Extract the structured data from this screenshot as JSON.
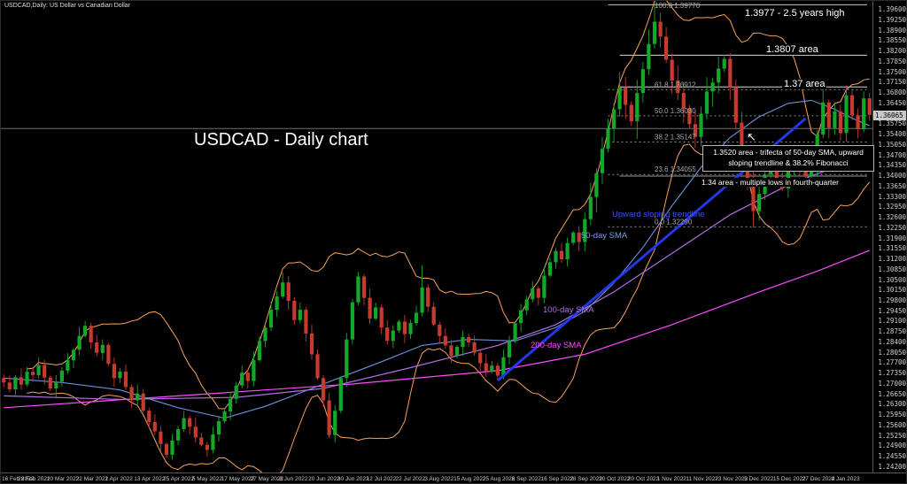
{
  "meta": {
    "app": "trading chart window"
  },
  "colors": {
    "background": "#000000",
    "bull": "#13a829",
    "bear": "#c63a30",
    "bollinger": "#f8a25a",
    "sma50": "#6f8fd8",
    "sma100": "#b06fe0",
    "sma200": "#ff4cff",
    "trendline": "#2438e8",
    "level_line": "#d9d9d9",
    "fib_line": "#8f8f8f",
    "axis_text": "#cfcfcf"
  },
  "annotations": {
    "big_title": "USDCAD - Daily chart",
    "high_label": "1.3977 - 2.5 years high",
    "area_3807": "1.3807 area",
    "area_137": "1.37 area",
    "trifecta": "1.3520 area - trifecta of 50-day SMA, upward sloping trendline & 38.2% Fibonacci",
    "area_134": "1.34 area - multiple lows in fourth-quarter",
    "sma50_label": "50-day SMA",
    "trendline_label": "Upward sloping trendline",
    "sma100_label": "100-day SMA",
    "sma200_label": "200-day SMA",
    "arrow_icon": "↖"
  },
  "chart_data": {
    "type": "candlestick",
    "title": "USDCAD - Daily chart",
    "symbol": "USDCAD,Daily: US Dollar vs Canadian Dollar",
    "ylim": [
      1.2405,
      1.399
    ],
    "y_tick_start": 1.242,
    "y_tick_step": 0.0035,
    "y_decimals": 5,
    "current_price": "1.36065",
    "grid": false,
    "legend_position": "none",
    "date_labels": [
      "16 Feb 2022",
      "28 Feb 2022",
      "10 Mar 2022",
      "22 Mar 2022",
      "1 Apr 2022",
      "13 Apr 2022",
      "25 Apr 2022",
      "5 May 2022",
      "17 May 2022",
      "27 May 2022",
      "8 Jun 2022",
      "20 Jun 2022",
      "30 Jun 2022",
      "12 Jul 2022",
      "22 Jul 2022",
      "3 Aug 2022",
      "15 Aug 2022",
      "25 Aug 2022",
      "6 Sep 2022",
      "16 Sep 2022",
      "28 Sep 2022",
      "10 Oct 2022",
      "20 Oct 2022",
      "1 Nov 2022",
      "11 Nov 2022",
      "23 Nov 2022",
      "5 Dec 2022",
      "15 Dec 2022",
      "27 Dec 2022",
      "4 Jan 2023"
    ],
    "ohlc": [
      [
        1.272,
        1.2732,
        1.2689,
        1.2705
      ],
      [
        1.2705,
        1.2729,
        1.2672,
        1.2682
      ],
      [
        1.2682,
        1.2731,
        1.2656,
        1.2723
      ],
      [
        1.2723,
        1.2753,
        1.268,
        1.2698
      ],
      [
        1.2698,
        1.2757,
        1.2692,
        1.2741
      ],
      [
        1.2741,
        1.2751,
        1.2708,
        1.273
      ],
      [
        1.273,
        1.279,
        1.2718,
        1.2764
      ],
      [
        1.2764,
        1.2782,
        1.2698,
        1.2722
      ],
      [
        1.2722,
        1.2728,
        1.2677,
        1.2685
      ],
      [
        1.2685,
        1.273,
        1.2655,
        1.2708
      ],
      [
        1.2708,
        1.2757,
        1.2692,
        1.2745
      ],
      [
        1.2745,
        1.2804,
        1.2735,
        1.278
      ],
      [
        1.278,
        1.2823,
        1.2754,
        1.2815
      ],
      [
        1.2815,
        1.2892,
        1.2797,
        1.2862
      ],
      [
        1.2862,
        1.2912,
        1.2856,
        1.2896
      ],
      [
        1.2896,
        1.2906,
        1.2818,
        1.284
      ],
      [
        1.284,
        1.2866,
        1.2793,
        1.2805
      ],
      [
        1.2805,
        1.285,
        1.2781,
        1.2832
      ],
      [
        1.2832,
        1.2838,
        1.276,
        1.2768
      ],
      [
        1.2768,
        1.279,
        1.269,
        1.272
      ],
      [
        1.272,
        1.2754,
        1.2704,
        1.2742
      ],
      [
        1.2742,
        1.2766,
        1.268,
        1.269
      ],
      [
        1.269,
        1.2698,
        1.2619,
        1.2645
      ],
      [
        1.2645,
        1.2698,
        1.2627,
        1.2668
      ],
      [
        1.2668,
        1.2684,
        1.2604,
        1.261
      ],
      [
        1.261,
        1.262,
        1.255,
        1.2572
      ],
      [
        1.2572,
        1.2598,
        1.2528,
        1.254
      ],
      [
        1.254,
        1.2558,
        1.2474,
        1.2498
      ],
      [
        1.2498,
        1.2504,
        1.245,
        1.2462
      ],
      [
        1.2462,
        1.2532,
        1.2445,
        1.251
      ],
      [
        1.251,
        1.256,
        1.2494,
        1.2548
      ],
      [
        1.2548,
        1.2609,
        1.2538,
        1.2585
      ],
      [
        1.2585,
        1.2593,
        1.253,
        1.2556
      ],
      [
        1.2556,
        1.2586,
        1.2502,
        1.252
      ],
      [
        1.252,
        1.2536,
        1.2489,
        1.2495
      ],
      [
        1.2495,
        1.2505,
        1.2456,
        1.2478
      ],
      [
        1.2478,
        1.2556,
        1.2466,
        1.253
      ],
      [
        1.253,
        1.2593,
        1.2506,
        1.2575
      ],
      [
        1.2575,
        1.2614,
        1.2567,
        1.2608
      ],
      [
        1.2608,
        1.2672,
        1.2578,
        1.265
      ],
      [
        1.265,
        1.2707,
        1.2634,
        1.2695
      ],
      [
        1.2695,
        1.2762,
        1.2685,
        1.2738
      ],
      [
        1.2738,
        1.2746,
        1.2684,
        1.271
      ],
      [
        1.271,
        1.281,
        1.2692,
        1.278
      ],
      [
        1.278,
        1.2861,
        1.2774,
        1.2845
      ],
      [
        1.2845,
        1.29,
        1.2823,
        1.289
      ],
      [
        1.289,
        1.2976,
        1.2878,
        1.295
      ],
      [
        1.295,
        1.3013,
        1.2926,
        1.2995
      ],
      [
        1.2995,
        1.3076,
        1.2987,
        1.3042
      ],
      [
        1.3042,
        1.3064,
        1.295,
        1.298
      ],
      [
        1.298,
        1.2992,
        1.2899,
        1.2915
      ],
      [
        1.2915,
        1.2974,
        1.2905,
        1.295
      ],
      [
        1.295,
        1.2958,
        1.2844,
        1.287
      ],
      [
        1.287,
        1.29,
        1.2782,
        1.28
      ],
      [
        1.28,
        1.2816,
        1.2714,
        1.272
      ],
      [
        1.272,
        1.273,
        1.2623,
        1.2645
      ],
      [
        1.2645,
        1.2671,
        1.2518,
        1.2528
      ],
      [
        1.2528,
        1.2628,
        1.2504,
        1.261
      ],
      [
        1.261,
        1.2726,
        1.2602,
        1.272
      ],
      [
        1.272,
        1.2872,
        1.269,
        1.285
      ],
      [
        1.285,
        1.2987,
        1.2834,
        1.2975
      ],
      [
        1.2975,
        1.3078,
        1.2965,
        1.3062
      ],
      [
        1.3062,
        1.307,
        1.2964,
        1.299
      ],
      [
        1.299,
        1.302,
        1.2902,
        1.292
      ],
      [
        1.292,
        1.2974,
        1.2914,
        1.2958
      ],
      [
        1.2958,
        1.2968,
        1.2868,
        1.289
      ],
      [
        1.289,
        1.2916,
        1.2833,
        1.2845
      ],
      [
        1.2845,
        1.2898,
        1.2821,
        1.288
      ],
      [
        1.288,
        1.2916,
        1.2872,
        1.291
      ],
      [
        1.291,
        1.2932,
        1.2838,
        1.2868
      ],
      [
        1.2868,
        1.2917,
        1.2852,
        1.2905
      ],
      [
        1.2905,
        1.2964,
        1.2895,
        1.294
      ],
      [
        1.294,
        1.31,
        1.2928,
        1.3025
      ],
      [
        1.3025,
        1.3035,
        1.2942,
        1.296
      ],
      [
        1.296,
        1.2976,
        1.2894,
        1.29
      ],
      [
        1.29,
        1.291,
        1.284,
        1.2862
      ],
      [
        1.2862,
        1.2888,
        1.2818,
        1.283
      ],
      [
        1.283,
        1.2848,
        1.2771,
        1.2795
      ],
      [
        1.2795,
        1.2831,
        1.2787,
        1.2825
      ],
      [
        1.2825,
        1.288,
        1.2795,
        1.2858
      ],
      [
        1.2858,
        1.287,
        1.2824,
        1.284
      ],
      [
        1.284,
        1.2864,
        1.2795,
        1.2805
      ],
      [
        1.2805,
        1.2813,
        1.2744,
        1.277
      ],
      [
        1.277,
        1.28,
        1.2724,
        1.2742
      ],
      [
        1.2742,
        1.2778,
        1.2736,
        1.2762
      ],
      [
        1.2762,
        1.2772,
        1.2712,
        1.2728
      ],
      [
        1.2728,
        1.2816,
        1.2716,
        1.279
      ],
      [
        1.279,
        1.2863,
        1.2766,
        1.2845
      ],
      [
        1.2845,
        1.2911,
        1.2837,
        1.2905
      ],
      [
        1.2905,
        1.297,
        1.2875,
        1.2948
      ],
      [
        1.2948,
        1.2997,
        1.2932,
        1.2985
      ],
      [
        1.2985,
        1.3046,
        1.2975,
        1.3022
      ],
      [
        1.3022,
        1.303,
        1.2964,
        1.299
      ],
      [
        1.299,
        1.3095,
        1.2972,
        1.3065
      ],
      [
        1.3065,
        1.3126,
        1.3059,
        1.311
      ],
      [
        1.311,
        1.3158,
        1.3088,
        1.3148
      ],
      [
        1.3148,
        1.3174,
        1.3108,
        1.312
      ],
      [
        1.312,
        1.3193,
        1.3096,
        1.3175
      ],
      [
        1.3175,
        1.3216,
        1.3167,
        1.321
      ],
      [
        1.321,
        1.3232,
        1.3148,
        1.3178
      ],
      [
        1.3178,
        1.3279,
        1.3146,
        1.3255
      ],
      [
        1.3255,
        1.3378,
        1.3235,
        1.333
      ],
      [
        1.333,
        1.3426,
        1.3278,
        1.341
      ],
      [
        1.341,
        1.3532,
        1.3374,
        1.3492
      ],
      [
        1.3492,
        1.3592,
        1.348,
        1.356
      ],
      [
        1.356,
        1.3645,
        1.3516,
        1.3625
      ],
      [
        1.3625,
        1.375,
        1.3601,
        1.3698
      ],
      [
        1.3698,
        1.3734,
        1.3592,
        1.364
      ],
      [
        1.364,
        1.3652,
        1.3569,
        1.3585
      ],
      [
        1.3585,
        1.3724,
        1.3525,
        1.368
      ],
      [
        1.368,
        1.3784,
        1.3648,
        1.376
      ],
      [
        1.376,
        1.3893,
        1.374,
        1.3845
      ],
      [
        1.3845,
        1.3977,
        1.3829,
        1.392
      ],
      [
        1.392,
        1.395,
        1.3834,
        1.387
      ],
      [
        1.387,
        1.3902,
        1.378,
        1.3792
      ],
      [
        1.3792,
        1.3812,
        1.3678,
        1.3722
      ],
      [
        1.3722,
        1.3774,
        1.3656,
        1.368
      ],
      [
        1.368,
        1.3716,
        1.358,
        1.3628
      ],
      [
        1.3628,
        1.364,
        1.3559,
        1.3575
      ],
      [
        1.3575,
        1.3619,
        1.3495,
        1.3532
      ],
      [
        1.3532,
        1.3634,
        1.35,
        1.361
      ],
      [
        1.361,
        1.3733,
        1.359,
        1.3685
      ],
      [
        1.3685,
        1.3731,
        1.3633,
        1.3715
      ],
      [
        1.3715,
        1.3802,
        1.3679,
        1.3762
      ],
      [
        1.3762,
        1.3808,
        1.375,
        1.3795
      ],
      [
        1.3795,
        1.3815,
        1.3656,
        1.37
      ],
      [
        1.37,
        1.3726,
        1.3556,
        1.358
      ],
      [
        1.358,
        1.3616,
        1.3417,
        1.3465
      ],
      [
        1.3465,
        1.3477,
        1.3354,
        1.337
      ],
      [
        1.337,
        1.3414,
        1.3226,
        1.3282
      ],
      [
        1.3282,
        1.3364,
        1.325,
        1.334
      ],
      [
        1.334,
        1.3453,
        1.332,
        1.3405
      ],
      [
        1.3405,
        1.3458,
        1.3371,
        1.3448
      ],
      [
        1.3448,
        1.3474,
        1.3369,
        1.3392
      ],
      [
        1.3392,
        1.3413,
        1.335,
        1.3358
      ],
      [
        1.3358,
        1.3433,
        1.3329,
        1.342
      ],
      [
        1.342,
        1.3506,
        1.3404,
        1.3472
      ],
      [
        1.3472,
        1.3495,
        1.3409,
        1.344
      ],
      [
        1.344,
        1.3448,
        1.3388,
        1.3398
      ],
      [
        1.3398,
        1.3451,
        1.3385,
        1.3422
      ],
      [
        1.3422,
        1.3556,
        1.3401,
        1.354
      ],
      [
        1.354,
        1.3699,
        1.3527,
        1.3648
      ],
      [
        1.3648,
        1.3658,
        1.3528,
        1.3562
      ],
      [
        1.3562,
        1.3644,
        1.3539,
        1.3618
      ],
      [
        1.3618,
        1.3639,
        1.352,
        1.3545
      ],
      [
        1.3545,
        1.3705,
        1.3516,
        1.3672
      ],
      [
        1.3672,
        1.3689,
        1.3589,
        1.3605
      ],
      [
        1.3605,
        1.3628,
        1.3527,
        1.3558
      ],
      [
        1.3558,
        1.3685,
        1.3548,
        1.3662
      ],
      [
        1.3662,
        1.368,
        1.3586,
        1.3606
      ]
    ],
    "overlays": {
      "bollinger": {
        "window": 14,
        "mult": 2
      },
      "sma50": {
        "label": "50-day SMA",
        "points": [
          [
            0,
            1.272
          ],
          [
            10,
            1.2705
          ],
          [
            20,
            1.268
          ],
          [
            30,
            1.262
          ],
          [
            38,
            1.2585
          ],
          [
            45,
            1.2625
          ],
          [
            55,
            1.27
          ],
          [
            65,
            1.2775
          ],
          [
            72,
            1.283
          ],
          [
            80,
            1.285
          ],
          [
            88,
            1.2845
          ],
          [
            95,
            1.289
          ],
          [
            100,
            1.2945
          ],
          [
            105,
            1.304
          ],
          [
            110,
            1.316
          ],
          [
            115,
            1.33
          ],
          [
            120,
            1.343
          ],
          [
            125,
            1.353
          ],
          [
            130,
            1.36
          ],
          [
            135,
            1.3645
          ],
          [
            139,
            1.3655
          ],
          [
            143,
            1.3625
          ],
          [
            146,
            1.3595
          ],
          [
            149,
            1.357
          ]
        ]
      },
      "sma100": {
        "label": "100-day SMA",
        "points": [
          [
            0,
            1.266
          ],
          [
            20,
            1.2648
          ],
          [
            40,
            1.2655
          ],
          [
            55,
            1.2685
          ],
          [
            70,
            1.2755
          ],
          [
            85,
            1.283
          ],
          [
            95,
            1.29
          ],
          [
            105,
            1.301
          ],
          [
            115,
            1.314
          ],
          [
            125,
            1.327
          ],
          [
            135,
            1.337
          ],
          [
            143,
            1.343
          ],
          [
            149,
            1.3465
          ]
        ]
      },
      "sma200": {
        "label": "200-day SMA",
        "points": [
          [
            0,
            1.262
          ],
          [
            30,
            1.266
          ],
          [
            60,
            1.27
          ],
          [
            85,
            1.2745
          ],
          [
            100,
            1.28
          ],
          [
            115,
            1.29
          ],
          [
            130,
            1.301
          ],
          [
            140,
            1.308
          ],
          [
            149,
            1.315
          ]
        ]
      },
      "trendline": {
        "label": "Upward sloping trendline",
        "from": [
          85,
          1.2712
        ],
        "to": [
          138,
          1.3594
        ]
      },
      "fibonacci": {
        "from_index": 104,
        "levels": [
          {
            "pct": "100.0",
            "price": 1.3977
          },
          {
            "pct": "61.8",
            "price": 1.36912
          },
          {
            "pct": "50.0",
            "price": 1.3603
          },
          {
            "pct": "38.2",
            "price": 1.35147
          },
          {
            "pct": "23.6",
            "price": 1.34055
          },
          {
            "pct": "0.0",
            "price": 1.3229
          }
        ]
      },
      "hlines": [
        {
          "price": 1.3807,
          "label": "1.3807 area",
          "from_index": 106,
          "color": "#d9d9d9"
        },
        {
          "price": 1.37,
          "label": "1.37 area",
          "from_index": 106,
          "color": "#d9d9d9"
        },
        {
          "price": 1.34,
          "label": "1.34 area",
          "from_index": 106,
          "color": "#9a9a9a"
        },
        {
          "price": 1.356,
          "label": "",
          "full": true,
          "color": "#6f6f6f"
        }
      ]
    }
  }
}
